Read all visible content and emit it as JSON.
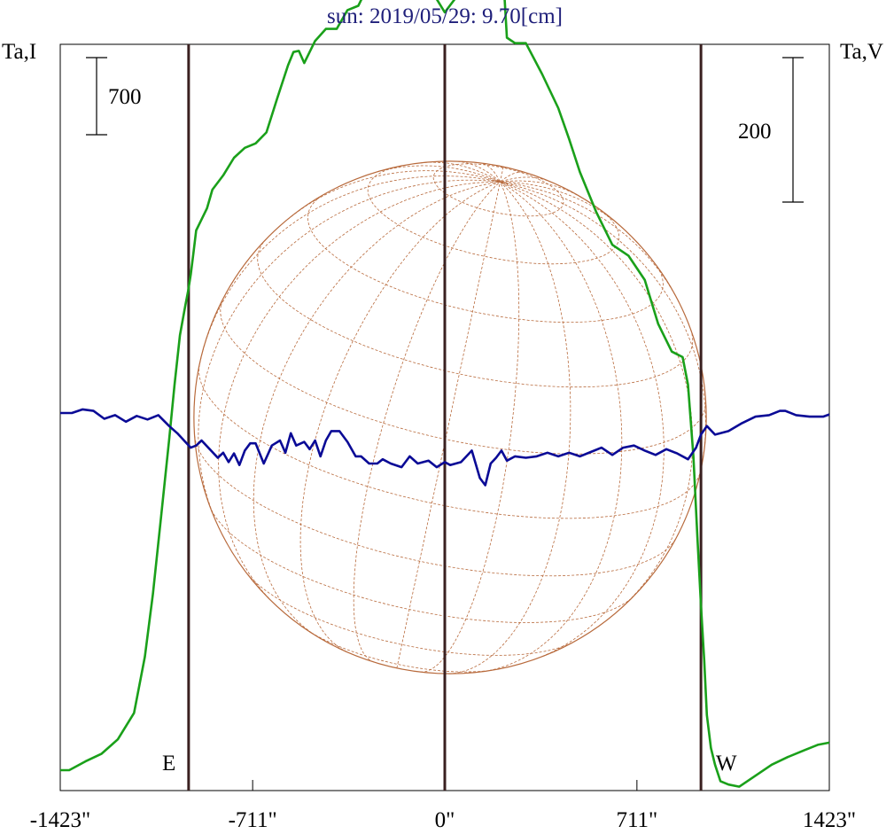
{
  "chart_data": {
    "type": "line",
    "title": "sun: 2019/05/29: 9.70[cm]",
    "left_axis_label": "Ta,I",
    "right_axis_label": "Ta,V",
    "xlim": [
      -1423,
      1423
    ],
    "x_ticks": [
      {
        "value": -1423,
        "label": "-1423\""
      },
      {
        "value": -711,
        "label": "-711\""
      },
      {
        "value": 0,
        "label": "0\""
      },
      {
        "value": 711,
        "label": "711\""
      },
      {
        "value": 1423,
        "label": "1423\""
      }
    ],
    "scale_bar_left": {
      "label": "700",
      "value": 700
    },
    "scale_bar_right": {
      "label": "200",
      "value": 200
    },
    "limb_labels": {
      "east": "E",
      "west": "W"
    },
    "vertical_markers": [
      -948,
      0,
      948
    ],
    "disk_radius": 948,
    "colors": {
      "stokes_I": "#1aa01a",
      "stokes_V": "#0a0a96",
      "disk": "#b86a3c",
      "markers": "#3a2020",
      "title": "#1f1f7a"
    },
    "series": [
      {
        "key": "I",
        "x": [
          -1423,
          -1390,
          -1330,
          -1270,
          -1210,
          -1150,
          -1110,
          -1080,
          -1050,
          -1020,
          -1000,
          -980,
          -960,
          -950,
          -940,
          -930,
          -920,
          -900,
          -880,
          -860,
          -820,
          -780,
          -740,
          -700,
          -660,
          -620,
          -580,
          -560,
          -540,
          -520,
          -480,
          -440,
          -400,
          -360,
          -320,
          -280,
          -240,
          -200,
          -160,
          -120,
          -80,
          -40,
          0,
          40,
          80,
          120,
          150,
          170,
          190,
          210,
          230,
          260,
          300,
          360,
          420,
          460,
          500,
          560,
          620,
          680,
          740,
          790,
          840,
          880,
          900,
          920,
          935,
          948,
          960,
          970,
          985,
          1000,
          1020,
          1050,
          1090,
          1150,
          1210,
          1270,
          1330,
          1380,
          1423
        ],
        "values": [
          0,
          0,
          80,
          150,
          280,
          520,
          1030,
          1600,
          2300,
          3000,
          3500,
          3950,
          4220,
          4350,
          4500,
          4700,
          4900,
          5000,
          5100,
          5270,
          5400,
          5560,
          5650,
          5690,
          5790,
          6100,
          6400,
          6520,
          6530,
          6420,
          6620,
          6730,
          6730,
          6900,
          6940,
          7140,
          7240,
          7200,
          7200,
          7010,
          7090,
          7040,
          6880,
          7010,
          7160,
          7260,
          7260,
          7740,
          7940,
          7490,
          6650,
          6600,
          6600,
          6320,
          6010,
          5730,
          5430,
          5070,
          4770,
          4670,
          4450,
          4050,
          3800,
          3750,
          3500,
          2850,
          2100,
          1500,
          1000,
          500,
          200,
          50,
          -100,
          -130,
          -150,
          -50,
          50,
          120,
          180,
          230,
          250
        ]
      },
      {
        "key": "V",
        "x": [
          -1423,
          -1380,
          -1340,
          -1300,
          -1260,
          -1220,
          -1180,
          -1140,
          -1100,
          -1060,
          -1020,
          -990,
          -960,
          -940,
          -920,
          -900,
          -870,
          -840,
          -820,
          -800,
          -780,
          -760,
          -740,
          -720,
          -700,
          -670,
          -640,
          -610,
          -590,
          -570,
          -550,
          -520,
          -500,
          -480,
          -460,
          -440,
          -420,
          -390,
          -360,
          -330,
          -310,
          -280,
          -250,
          -230,
          -200,
          -160,
          -130,
          -100,
          -60,
          -30,
          0,
          20,
          60,
          100,
          130,
          150,
          170,
          190,
          210,
          230,
          260,
          300,
          340,
          380,
          420,
          460,
          500,
          540,
          580,
          620,
          660,
          700,
          740,
          780,
          820,
          860,
          900,
          930,
          948,
          970,
          1000,
          1050,
          1100,
          1150,
          1200,
          1240,
          1260,
          1300,
          1350,
          1400,
          1423
        ],
        "values": [
          0,
          0,
          5,
          3,
          -8,
          -3,
          -12,
          -4,
          -9,
          -3,
          -18,
          -28,
          -40,
          -48,
          -45,
          -38,
          -50,
          -62,
          -55,
          -68,
          -56,
          -72,
          -52,
          -42,
          -42,
          -70,
          -45,
          -38,
          -55,
          -28,
          -45,
          -40,
          -50,
          -38,
          -60,
          -38,
          -25,
          -25,
          -40,
          -60,
          -60,
          -70,
          -70,
          -64,
          -70,
          -75,
          -60,
          -70,
          -66,
          -75,
          -68,
          -72,
          -68,
          -52,
          -90,
          -100,
          -70,
          -62,
          -52,
          -66,
          -60,
          -62,
          -60,
          -55,
          -60,
          -55,
          -60,
          -54,
          -48,
          -58,
          -48,
          -45,
          -52,
          -58,
          -50,
          -56,
          -64,
          -48,
          -30,
          -18,
          -30,
          -25,
          -14,
          -5,
          -3,
          3,
          3,
          -3,
          -5,
          -5,
          -2
        ]
      }
    ]
  }
}
